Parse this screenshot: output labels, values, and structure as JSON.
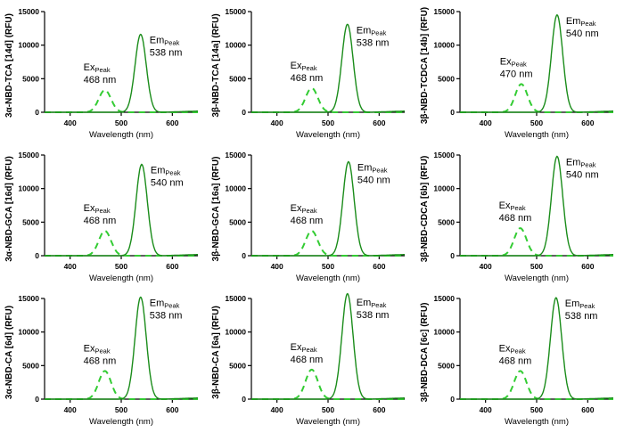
{
  "chart_data": [
    {
      "type": "line",
      "ylabel": "3α-NBD-TCA [14d] (RFU)",
      "xlabel": "Wavelength (nm)",
      "xlim": [
        350,
        650
      ],
      "ylim": [
        0,
        15000
      ],
      "xticks": [
        400,
        500,
        600
      ],
      "yticks": [
        0,
        5000,
        10000,
        15000
      ],
      "ex": {
        "label": "Ex",
        "sub": "Peak",
        "text": "468 nm",
        "peak_nm": 468,
        "peak_rfu": 3300
      },
      "em": {
        "label": "Em",
        "sub": "Peak",
        "text": "538 nm",
        "peak_nm": 538,
        "peak_rfu": 11600
      }
    },
    {
      "type": "line",
      "ylabel": "3β-NBD-TCA [14a] (RFU)",
      "xlabel": "Wavelength (nm)",
      "xlim": [
        350,
        650
      ],
      "ylim": [
        0,
        15000
      ],
      "xticks": [
        400,
        500,
        600
      ],
      "yticks": [
        0,
        5000,
        10000,
        15000
      ],
      "ex": {
        "label": "Ex",
        "sub": "Peak",
        "text": "468 nm",
        "peak_nm": 468,
        "peak_rfu": 3600
      },
      "em": {
        "label": "Em",
        "sub": "Peak",
        "text": "538 nm",
        "peak_nm": 538,
        "peak_rfu": 13100
      }
    },
    {
      "type": "line",
      "ylabel": "3β-NBD-TCDCA [14b] (RFU)",
      "xlabel": "Wavelength (nm)",
      "xlim": [
        350,
        650
      ],
      "ylim": [
        0,
        15000
      ],
      "xticks": [
        400,
        500,
        600
      ],
      "yticks": [
        0,
        5000,
        10000,
        15000
      ],
      "ex": {
        "label": "Ex",
        "sub": "Peak",
        "text": "470 nm",
        "peak_nm": 470,
        "peak_rfu": 4200
      },
      "em": {
        "label": "Em",
        "sub": "Peak",
        "text": "540 nm",
        "peak_nm": 540,
        "peak_rfu": 14500
      }
    },
    {
      "type": "line",
      "ylabel": "3α-NBD-GCA [16d] (RFU)",
      "xlabel": "Wavelength (nm)",
      "xlim": [
        350,
        650
      ],
      "ylim": [
        0,
        15000
      ],
      "xticks": [
        400,
        500,
        600
      ],
      "yticks": [
        0,
        5000,
        10000,
        15000
      ],
      "ex": {
        "label": "Ex",
        "sub": "Peak",
        "text": "468 nm",
        "peak_nm": 468,
        "peak_rfu": 3700
      },
      "em": {
        "label": "Em",
        "sub": "Peak",
        "text": "540 nm",
        "peak_nm": 540,
        "peak_rfu": 13600
      }
    },
    {
      "type": "line",
      "ylabel": "3β-NBD-GCA [16a] (RFU)",
      "xlabel": "Wavelength (nm)",
      "xlim": [
        350,
        650
      ],
      "ylim": [
        0,
        15000
      ],
      "xticks": [
        400,
        500,
        600
      ],
      "yticks": [
        0,
        5000,
        10000,
        15000
      ],
      "ex": {
        "label": "Ex",
        "sub": "Peak",
        "text": "468 nm",
        "peak_nm": 468,
        "peak_rfu": 3700
      },
      "em": {
        "label": "Em",
        "sub": "Peak",
        "text": "540 nm",
        "peak_nm": 540,
        "peak_rfu": 14000
      }
    },
    {
      "type": "line",
      "ylabel": "3β-NBD-CDCA [6b] (RFU)",
      "xlabel": "Wavelength (nm)",
      "xlim": [
        350,
        650
      ],
      "ylim": [
        0,
        15000
      ],
      "xticks": [
        400,
        500,
        600
      ],
      "yticks": [
        0,
        5000,
        10000,
        15000
      ],
      "ex": {
        "label": "Ex",
        "sub": "Peak",
        "text": "468 nm",
        "peak_nm": 468,
        "peak_rfu": 4100
      },
      "em": {
        "label": "Em",
        "sub": "Peak",
        "text": "540 nm",
        "peak_nm": 540,
        "peak_rfu": 14800
      }
    },
    {
      "type": "line",
      "ylabel": "3α-NBD-CA [6d] (RFU)",
      "xlabel": "Wavelength (nm)",
      "xlim": [
        350,
        650
      ],
      "ylim": [
        0,
        15000
      ],
      "xticks": [
        400,
        500,
        600
      ],
      "yticks": [
        0,
        5000,
        10000,
        15000
      ],
      "ex": {
        "label": "Ex",
        "sub": "Peak",
        "text": "468 nm",
        "peak_nm": 468,
        "peak_rfu": 4200
      },
      "em": {
        "label": "Em",
        "sub": "Peak",
        "text": "538 nm",
        "peak_nm": 538,
        "peak_rfu": 15200
      }
    },
    {
      "type": "line",
      "ylabel": "3β-NBD-CA [6a] (RFU)",
      "xlabel": "Wavelength (nm)",
      "xlim": [
        350,
        650
      ],
      "ylim": [
        0,
        15000
      ],
      "xticks": [
        400,
        500,
        600
      ],
      "yticks": [
        0,
        5000,
        10000,
        15000
      ],
      "ex": {
        "label": "Ex",
        "sub": "Peak",
        "text": "468 nm",
        "peak_nm": 468,
        "peak_rfu": 4400
      },
      "em": {
        "label": "Em",
        "sub": "Peak",
        "text": "538 nm",
        "peak_nm": 538,
        "peak_rfu": 15700
      }
    },
    {
      "type": "line",
      "ylabel": "3β-NBD-DCA [6c] (RFU)",
      "xlabel": "Wavelength (nm)",
      "xlim": [
        350,
        650
      ],
      "ylim": [
        0,
        15000
      ],
      "xticks": [
        400,
        500,
        600
      ],
      "yticks": [
        0,
        5000,
        10000,
        15000
      ],
      "ex": {
        "label": "Ex",
        "sub": "Peak",
        "text": "468 nm",
        "peak_nm": 468,
        "peak_rfu": 4200
      },
      "em": {
        "label": "Em",
        "sub": "Peak",
        "text": "538 nm",
        "peak_nm": 538,
        "peak_rfu": 15100
      }
    }
  ],
  "colors": {
    "excitation": "#33cc33",
    "emission": "#1a8c1a",
    "axis": "#000000"
  },
  "styles": {
    "excitation": "dashed",
    "emission": "solid"
  }
}
